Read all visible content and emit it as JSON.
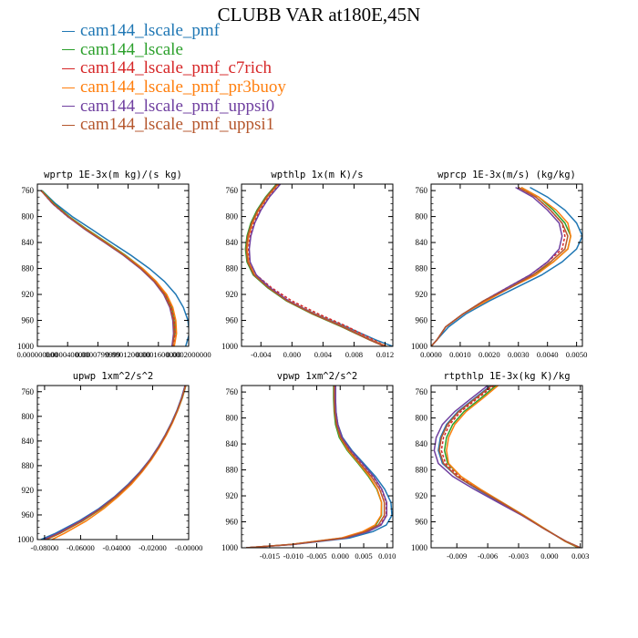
{
  "title": "CLUBB VAR at180E,45N",
  "legend": [
    {
      "name": "cam144_lscale_pmf",
      "color": "#1f77b4"
    },
    {
      "name": "cam144_lscale",
      "color": "#2ca02c"
    },
    {
      "name": "cam144_lscale_pmf_c7rich",
      "color": "#d62728"
    },
    {
      "name": "cam144_lscale_pmf_pr3buoy",
      "color": "#ff7f0e"
    },
    {
      "name": "cam144_lscale_pmf_uppsi0",
      "color": "#7040a0"
    },
    {
      "name": "cam144_lscale_pmf_uppsi1",
      "color": "#b5562c"
    }
  ],
  "chart_data": [
    {
      "type": "line",
      "title": "wprtp 1E-3x(m kg)/(s kg)",
      "xlim": [
        0,
        0.0002
      ],
      "ylim": [
        1000,
        750
      ],
      "xticks": [
        0,
        4e-05,
        8e-05,
        0.00012,
        0.00016,
        0.0002
      ],
      "xticklabels": [
        "0.000000000",
        "0.0000400000",
        "0.0000799999",
        "0.0001200000",
        "0.0001600000",
        "0.0002000000"
      ],
      "yticks": [
        760,
        800,
        840,
        880,
        920,
        960,
        1000
      ],
      "y": [
        760,
        780,
        800,
        820,
        840,
        860,
        880,
        900,
        920,
        940,
        960,
        980,
        1000
      ],
      "series": [
        {
          "name": "cam144_lscale_pmf",
          "dashed": false,
          "x": [
            6e-06,
            2.4e-05,
            4.6e-05,
            7.2e-05,
            9.8e-05,
            0.000124,
            0.000148,
            0.000168,
            0.000183,
            0.000193,
            0.000199,
            0.000201,
            0.000196
          ]
        },
        {
          "name": "cam144_lscale",
          "dashed": false,
          "x": [
            6e-06,
            2.2e-05,
            4.2e-05,
            6.6e-05,
            9.2e-05,
            0.000117,
            0.000139,
            0.000157,
            0.00017,
            0.000178,
            0.000182,
            0.000182,
            0.000178
          ]
        },
        {
          "name": "cam144_lscale_pmf_c7rich",
          "dashed": true,
          "x": [
            5e-06,
            2e-05,
            4e-05,
            6.4e-05,
            9e-05,
            0.000115,
            0.000138,
            0.000156,
            0.000169,
            0.000177,
            0.000181,
            0.000182,
            0.00018
          ]
        },
        {
          "name": "cam144_lscale_pmf_pr3buoy",
          "dashed": false,
          "x": [
            5e-06,
            2.1e-05,
            4.1e-05,
            6.5e-05,
            9.1e-05,
            0.000116,
            0.000139,
            0.000157,
            0.000171,
            0.000179,
            0.000183,
            0.000184,
            0.000181
          ]
        },
        {
          "name": "cam144_lscale_pmf_uppsi0",
          "dashed": false,
          "x": [
            5e-06,
            2e-05,
            4e-05,
            6.3e-05,
            8.9e-05,
            0.000114,
            0.000136,
            0.000154,
            0.000167,
            0.000175,
            0.000179,
            0.00018,
            0.000178
          ]
        },
        {
          "name": "cam144_lscale_pmf_uppsi1",
          "dashed": false,
          "x": [
            5e-06,
            2.1e-05,
            4.1e-05,
            6.4e-05,
            9e-05,
            0.000115,
            0.000137,
            0.000155,
            0.000168,
            0.000176,
            0.00018,
            0.000181,
            0.000179
          ]
        }
      ]
    },
    {
      "type": "line",
      "title": "wpthlp 1x(m K)/s",
      "xlim": [
        -0.0065,
        0.013
      ],
      "ylim": [
        1000,
        750
      ],
      "xticks": [
        -0.004,
        0,
        0.004,
        0.008,
        0.012
      ],
      "xticklabels": [
        "-0.004",
        "0.000",
        "0.004",
        "0.008",
        "0.012"
      ],
      "yticks": [
        760,
        800,
        840,
        880,
        920,
        960,
        1000
      ],
      "y": [
        750,
        770,
        790,
        810,
        830,
        850,
        870,
        890,
        910,
        930,
        950,
        970,
        990,
        1000
      ],
      "series": [
        {
          "name": "cam144_lscale_pmf",
          "dashed": false,
          "x": [
            -0.0018,
            -0.0032,
            -0.0043,
            -0.0051,
            -0.0056,
            -0.0058,
            -0.0057,
            -0.0049,
            -0.003,
            -0.0005,
            0.003,
            0.007,
            0.0108,
            0.013
          ]
        },
        {
          "name": "cam144_lscale",
          "dashed": false,
          "x": [
            -0.002,
            -0.0034,
            -0.0045,
            -0.0053,
            -0.0058,
            -0.006,
            -0.0058,
            -0.005,
            -0.0031,
            -0.0007,
            0.0026,
            0.0064,
            0.01,
            0.012
          ]
        },
        {
          "name": "cam144_lscale_pmf_c7rich",
          "dashed": true,
          "x": [
            -0.0016,
            -0.003,
            -0.0041,
            -0.0049,
            -0.0054,
            -0.0056,
            -0.0055,
            -0.0046,
            -0.0026,
            0.0,
            0.0034,
            0.0072,
            0.0105,
            0.0122
          ]
        },
        {
          "name": "cam144_lscale_pmf_pr3buoy",
          "dashed": false,
          "x": [
            -0.0018,
            -0.0032,
            -0.0043,
            -0.0051,
            -0.0056,
            -0.0058,
            -0.0056,
            -0.0048,
            -0.0029,
            -0.0004,
            0.0029,
            0.0067,
            0.0102,
            0.0122
          ]
        },
        {
          "name": "cam144_lscale_pmf_uppsi0",
          "dashed": false,
          "x": [
            -0.0015,
            -0.0029,
            -0.004,
            -0.0048,
            -0.0053,
            -0.0055,
            -0.0054,
            -0.0046,
            -0.0028,
            -0.0004,
            0.0028,
            0.0066,
            0.0101,
            0.012
          ]
        },
        {
          "name": "cam144_lscale_pmf_uppsi1",
          "dashed": false,
          "x": [
            -0.0019,
            -0.0033,
            -0.0044,
            -0.0052,
            -0.0057,
            -0.0059,
            -0.0057,
            -0.0049,
            -0.003,
            -0.0006,
            0.0027,
            0.0065,
            0.01,
            0.0119
          ]
        }
      ]
    },
    {
      "type": "line",
      "title": "wprcp 1E-3x(m/s) (kg/kg)",
      "xlim": [
        0,
        0.0052
      ],
      "ylim": [
        1000,
        750
      ],
      "xticks": [
        0,
        0.001,
        0.002,
        0.003,
        0.004,
        0.005
      ],
      "xticklabels": [
        "0.0000",
        "0.0010",
        "0.0020",
        "0.0030",
        "0.0040",
        "0.0050"
      ],
      "yticks": [
        760,
        800,
        840,
        880,
        920,
        960,
        1000
      ],
      "y": [
        755,
        770,
        790,
        810,
        830,
        850,
        870,
        890,
        910,
        930,
        950,
        970,
        990,
        1000
      ],
      "series": [
        {
          "name": "cam144_lscale_pmf",
          "dashed": false,
          "x": [
            0.0034,
            0.004,
            0.0046,
            0.005,
            0.0052,
            0.005,
            0.0045,
            0.0038,
            0.0029,
            0.002,
            0.0012,
            0.0006,
            0.0002,
            0.0
          ]
        },
        {
          "name": "cam144_lscale",
          "dashed": false,
          "x": [
            0.0031,
            0.0037,
            0.0042,
            0.0046,
            0.0048,
            0.0047,
            0.0042,
            0.0035,
            0.0027,
            0.0018,
            0.0011,
            0.0005,
            0.0002,
            0.0
          ]
        },
        {
          "name": "cam144_lscale_pmf_c7rich",
          "dashed": true,
          "x": [
            0.003,
            0.0036,
            0.0041,
            0.0045,
            0.0046,
            0.0045,
            0.004,
            0.0034,
            0.0026,
            0.0018,
            0.0011,
            0.0005,
            0.0002,
            0.0
          ]
        },
        {
          "name": "cam144_lscale_pmf_pr3buoy",
          "dashed": false,
          "x": [
            0.0031,
            0.0037,
            0.0043,
            0.0047,
            0.0048,
            0.0047,
            0.0042,
            0.0036,
            0.0027,
            0.0019,
            0.0011,
            0.0005,
            0.0002,
            0.0
          ]
        },
        {
          "name": "cam144_lscale_pmf_uppsi0",
          "dashed": false,
          "x": [
            0.0029,
            0.0035,
            0.004,
            0.0044,
            0.0045,
            0.0044,
            0.004,
            0.0034,
            0.0026,
            0.0018,
            0.0011,
            0.0005,
            0.0002,
            0.0
          ]
        },
        {
          "name": "cam144_lscale_pmf_uppsi1",
          "dashed": false,
          "x": [
            0.003,
            0.0036,
            0.0041,
            0.0045,
            0.0047,
            0.0046,
            0.0041,
            0.0035,
            0.0027,
            0.0018,
            0.0011,
            0.0005,
            0.0002,
            0.0
          ]
        }
      ]
    },
    {
      "type": "line",
      "title": "upwp 1xm^2/s^2",
      "xlim": [
        -0.084,
        0
      ],
      "ylim": [
        1000,
        750
      ],
      "xticks": [
        -0.08,
        -0.06,
        -0.04,
        -0.02,
        0
      ],
      "xticklabels": [
        "-0.08000",
        "-0.06000",
        "-0.04000",
        "-0.02000",
        "-0.00000"
      ],
      "yticks": [
        760,
        800,
        840,
        880,
        920,
        960,
        1000
      ],
      "y": [
        750,
        770,
        790,
        810,
        830,
        850,
        870,
        890,
        910,
        930,
        950,
        970,
        990,
        1000
      ],
      "series": [
        {
          "name": "cam144_lscale_pmf",
          "dashed": false,
          "x": [
            -0.002,
            -0.004,
            -0.0065,
            -0.0095,
            -0.013,
            -0.017,
            -0.0215,
            -0.027,
            -0.0335,
            -0.041,
            -0.05,
            -0.061,
            -0.074,
            -0.082
          ]
        },
        {
          "name": "cam144_lscale",
          "dashed": false,
          "x": [
            -0.0015,
            -0.0035,
            -0.006,
            -0.009,
            -0.0125,
            -0.0165,
            -0.021,
            -0.0262,
            -0.0325,
            -0.04,
            -0.0485,
            -0.059,
            -0.0715,
            -0.079
          ]
        },
        {
          "name": "cam144_lscale_pmf_c7rich",
          "dashed": true,
          "x": [
            -0.0018,
            -0.0038,
            -0.0063,
            -0.0093,
            -0.0128,
            -0.0168,
            -0.0213,
            -0.0266,
            -0.033,
            -0.0405,
            -0.0492,
            -0.0598,
            -0.0722,
            -0.08
          ]
        },
        {
          "name": "cam144_lscale_pmf_pr3buoy",
          "dashed": false,
          "x": [
            -0.0016,
            -0.0036,
            -0.006,
            -0.0089,
            -0.0123,
            -0.0162,
            -0.0206,
            -0.0258,
            -0.0318,
            -0.039,
            -0.0472,
            -0.057,
            -0.069,
            -0.076
          ]
        },
        {
          "name": "cam144_lscale_pmf_uppsi0",
          "dashed": false,
          "x": [
            -0.0019,
            -0.0039,
            -0.0064,
            -0.0094,
            -0.0129,
            -0.0169,
            -0.0214,
            -0.0268,
            -0.0332,
            -0.0407,
            -0.0495,
            -0.0602,
            -0.0728,
            -0.0805
          ]
        },
        {
          "name": "cam144_lscale_pmf_uppsi1",
          "dashed": false,
          "x": [
            -0.0017,
            -0.0037,
            -0.0062,
            -0.0092,
            -0.0127,
            -0.0166,
            -0.0211,
            -0.0264,
            -0.0327,
            -0.0402,
            -0.0488,
            -0.0592,
            -0.0716,
            -0.0792
          ]
        }
      ]
    },
    {
      "type": "line",
      "title": "vpwp 1xm^2/s^2",
      "xlim": [
        -0.021,
        0.0112
      ],
      "ylim": [
        1000,
        750
      ],
      "xticks": [
        -0.015,
        -0.01,
        -0.005,
        0,
        0.005,
        0.01
      ],
      "xticklabels": [
        "-0.015",
        "-0.010",
        "-0.005",
        "0.000",
        "0.005",
        "0.010"
      ],
      "yticks": [
        760,
        800,
        840,
        880,
        920,
        960,
        1000
      ],
      "y": [
        750,
        770,
        790,
        810,
        830,
        850,
        870,
        890,
        910,
        930,
        950,
        965,
        975,
        985,
        995,
        1000
      ],
      "series": [
        {
          "name": "cam144_lscale_pmf",
          "dashed": false,
          "x": [
            -0.001,
            -0.001,
            -0.0009,
            -0.0005,
            0.0005,
            0.0025,
            0.005,
            0.0075,
            0.0095,
            0.0108,
            0.011,
            0.0098,
            0.007,
            0.002,
            -0.01,
            -0.02
          ]
        },
        {
          "name": "cam144_lscale",
          "dashed": false,
          "x": [
            -0.0014,
            -0.0014,
            -0.0013,
            -0.001,
            -0.0002,
            0.0015,
            0.0038,
            0.006,
            0.0078,
            0.0088,
            0.0088,
            0.0076,
            0.005,
            0.0005,
            -0.0105,
            -0.02
          ]
        },
        {
          "name": "cam144_lscale_pmf_c7rich",
          "dashed": true,
          "x": [
            -0.0011,
            -0.0011,
            -0.001,
            -0.0006,
            0.0003,
            0.0022,
            0.0046,
            0.007,
            0.0088,
            0.0098,
            0.0098,
            0.0085,
            0.0058,
            0.001,
            -0.0102,
            -0.02
          ]
        },
        {
          "name": "cam144_lscale_pmf_pr3buoy",
          "dashed": false,
          "x": [
            -0.0012,
            -0.0012,
            -0.0011,
            -0.0008,
            0.0,
            0.0017,
            0.004,
            0.0062,
            0.0079,
            0.0088,
            0.0087,
            0.0074,
            0.0048,
            0.0002,
            -0.0106,
            -0.02
          ]
        },
        {
          "name": "cam144_lscale_pmf_uppsi0",
          "dashed": false,
          "x": [
            -0.001,
            -0.001,
            -0.0009,
            -0.0005,
            0.0004,
            0.0023,
            0.0047,
            0.0071,
            0.0089,
            0.0099,
            0.0099,
            0.0087,
            0.006,
            0.0012,
            -0.0101,
            -0.02
          ]
        },
        {
          "name": "cam144_lscale_pmf_uppsi1",
          "dashed": false,
          "x": [
            -0.0013,
            -0.0013,
            -0.0012,
            -0.0008,
            0.0001,
            0.0019,
            0.0042,
            0.0066,
            0.0084,
            0.0094,
            0.0094,
            0.0081,
            0.0054,
            0.0008,
            -0.0104,
            -0.02
          ]
        }
      ]
    },
    {
      "type": "line",
      "title": "rtpthlp 1E-3x(kg K)/kg",
      "xlim": [
        -0.0115,
        0.0032
      ],
      "ylim": [
        1000,
        750
      ],
      "xticks": [
        -0.009,
        -0.006,
        -0.003,
        0,
        0.003
      ],
      "xticklabels": [
        "-0.009",
        "-0.006",
        "-0.003",
        "0.000",
        "0.003"
      ],
      "yticks": [
        760,
        800,
        840,
        880,
        920,
        960,
        1000
      ],
      "y": [
        750,
        770,
        790,
        810,
        830,
        850,
        870,
        890,
        910,
        930,
        950,
        970,
        990,
        1000
      ],
      "series": [
        {
          "name": "cam144_lscale_pmf",
          "dashed": false,
          "x": [
            -0.0057,
            -0.0073,
            -0.0089,
            -0.01,
            -0.0106,
            -0.0108,
            -0.0104,
            -0.009,
            -0.007,
            -0.0048,
            -0.0026,
            -0.0006,
            0.0016,
            0.003
          ]
        },
        {
          "name": "cam144_lscale",
          "dashed": false,
          "x": [
            -0.0052,
            -0.0067,
            -0.0083,
            -0.0094,
            -0.01,
            -0.0102,
            -0.0099,
            -0.0086,
            -0.0067,
            -0.0046,
            -0.0025,
            -0.0005,
            0.0015,
            0.0028
          ]
        },
        {
          "name": "cam144_lscale_pmf_c7rich",
          "dashed": true,
          "x": [
            -0.0054,
            -0.007,
            -0.0086,
            -0.0097,
            -0.0103,
            -0.0105,
            -0.0101,
            -0.0088,
            -0.0068,
            -0.0047,
            -0.0026,
            -0.0006,
            0.0016,
            0.003
          ]
        },
        {
          "name": "cam144_lscale_pmf_pr3buoy",
          "dashed": false,
          "x": [
            -0.005,
            -0.0065,
            -0.0081,
            -0.0092,
            -0.0098,
            -0.01,
            -0.0098,
            -0.0086,
            -0.0067,
            -0.0046,
            -0.0025,
            -0.0005,
            0.0015,
            0.0029
          ]
        },
        {
          "name": "cam144_lscale_pmf_uppsi0",
          "dashed": false,
          "x": [
            -0.006,
            -0.0076,
            -0.0092,
            -0.0104,
            -0.011,
            -0.0112,
            -0.0108,
            -0.0094,
            -0.0073,
            -0.005,
            -0.0027,
            -0.0006,
            0.0016,
            0.003
          ]
        },
        {
          "name": "cam144_lscale_pmf_uppsi1",
          "dashed": false,
          "x": [
            -0.0056,
            -0.0072,
            -0.0088,
            -0.0099,
            -0.0105,
            -0.0107,
            -0.0103,
            -0.009,
            -0.0069,
            -0.0047,
            -0.0026,
            -0.0006,
            0.0016,
            0.003
          ]
        }
      ]
    }
  ]
}
